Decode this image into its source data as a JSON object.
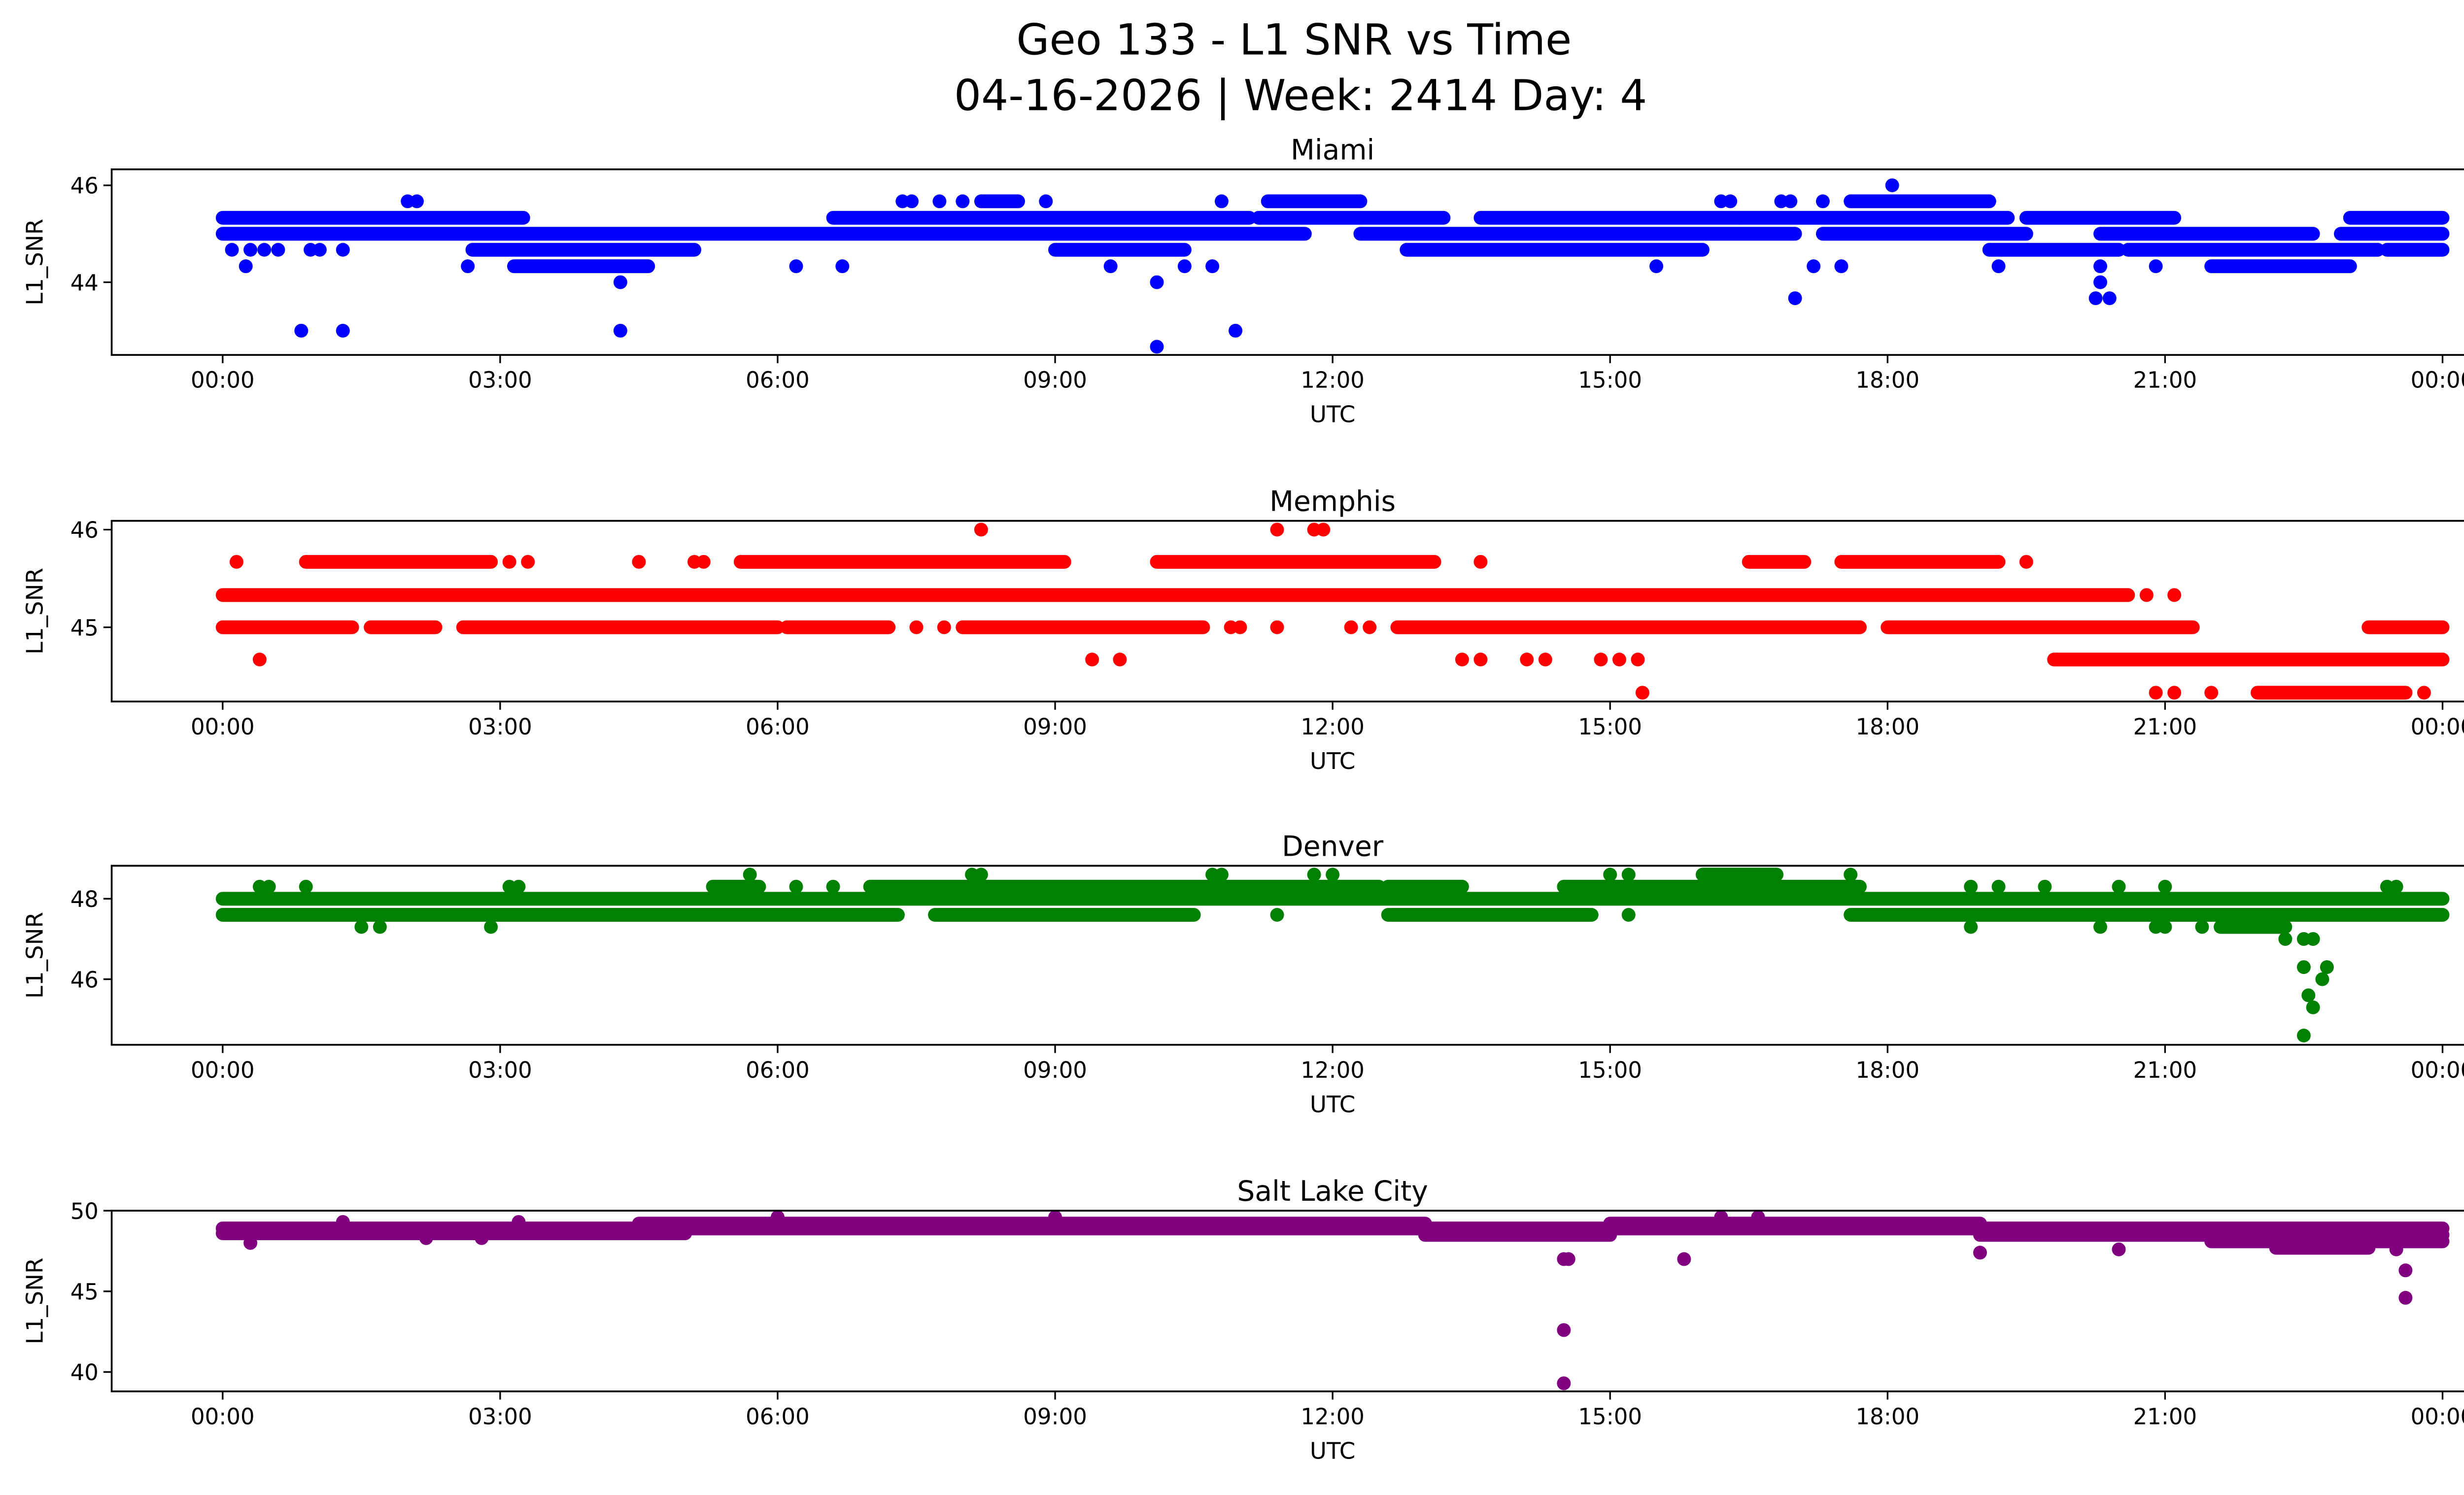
{
  "title_line1": "Geo 133 - L1 SNR vs Time",
  "title_line2": "04-16-2026 | Week: 2414 Day: 4",
  "chart_data": [
    {
      "type": "scatter",
      "title": "Miami",
      "color": "#0000ff",
      "xlabel": "UTC",
      "ylabel": "L1_SNR",
      "x_unit": "hours UTC",
      "xlim": [
        -1.2,
        25.2
      ],
      "ylim": [
        42.5,
        46.33
      ],
      "xticks": [
        0,
        3,
        6,
        9,
        12,
        15,
        18,
        21,
        24
      ],
      "xtick_labels": [
        "00:00",
        "03:00",
        "06:00",
        "09:00",
        "12:00",
        "15:00",
        "18:00",
        "21:00",
        "00:00"
      ],
      "yticks": [
        44,
        46
      ],
      "ytick_labels": [
        "44",
        "46"
      ],
      "bands": [
        [
          0,
          3.25,
          45.33
        ],
        [
          6.6,
          11.1,
          45.33
        ],
        [
          11.2,
          12.3,
          45.33
        ],
        [
          12.3,
          13.2,
          45.33
        ],
        [
          13.6,
          16.4,
          45.33
        ],
        [
          16.4,
          19.3,
          45.33
        ],
        [
          19.5,
          21.1,
          45.33
        ],
        [
          23.0,
          24,
          45.33
        ],
        [
          0,
          11.7,
          45.0
        ],
        [
          12.3,
          17.0,
          45.0
        ],
        [
          17.3,
          19.5,
          45.0
        ],
        [
          20.3,
          22.6,
          45.0
        ],
        [
          22.9,
          24,
          45.0
        ],
        [
          2.7,
          5.1,
          44.67
        ],
        [
          9.0,
          10.4,
          44.67
        ],
        [
          12.8,
          16.0,
          44.67
        ],
        [
          19.1,
          20.5,
          44.67
        ],
        [
          20.6,
          23.3,
          44.67
        ],
        [
          23.4,
          24,
          44.67
        ],
        [
          3.15,
          4.6,
          44.33
        ],
        [
          21.5,
          23.0,
          44.33
        ],
        [
          11.3,
          12.3,
          45.67
        ],
        [
          17.6,
          19.1,
          45.67
        ],
        [
          8.2,
          8.6,
          45.67
        ]
      ],
      "points": [
        [
          0.1,
          44.67
        ],
        [
          0.3,
          44.67
        ],
        [
          0.45,
          44.67
        ],
        [
          0.6,
          44.67
        ],
        [
          0.95,
          44.67
        ],
        [
          1.05,
          44.67
        ],
        [
          1.3,
          44.67
        ],
        [
          0.25,
          44.33
        ],
        [
          0.85,
          43.0
        ],
        [
          1.3,
          43.0
        ],
        [
          4.3,
          43.0
        ],
        [
          10.95,
          43.0
        ],
        [
          10.1,
          42.67
        ],
        [
          4.3,
          44.0
        ],
        [
          10.1,
          44.0
        ],
        [
          20.3,
          44.0
        ],
        [
          17.0,
          43.67
        ],
        [
          20.25,
          43.67
        ],
        [
          20.4,
          43.67
        ],
        [
          2.65,
          44.33
        ],
        [
          6.2,
          44.33
        ],
        [
          6.7,
          44.33
        ],
        [
          9.6,
          44.33
        ],
        [
          10.4,
          44.33
        ],
        [
          10.7,
          44.33
        ],
        [
          15.5,
          44.33
        ],
        [
          17.2,
          44.33
        ],
        [
          17.5,
          44.33
        ],
        [
          19.2,
          44.33
        ],
        [
          20.3,
          44.33
        ],
        [
          20.9,
          44.33
        ],
        [
          2.0,
          45.67
        ],
        [
          2.1,
          45.67
        ],
        [
          7.35,
          45.67
        ],
        [
          7.45,
          45.67
        ],
        [
          7.75,
          45.67
        ],
        [
          8.0,
          45.67
        ],
        [
          8.9,
          45.67
        ],
        [
          10.8,
          45.67
        ],
        [
          16.2,
          45.67
        ],
        [
          16.3,
          45.67
        ],
        [
          16.85,
          45.67
        ],
        [
          16.95,
          45.67
        ],
        [
          17.3,
          45.67
        ],
        [
          18.05,
          46.0
        ]
      ]
    },
    {
      "type": "scatter",
      "title": "Memphis",
      "color": "#ff0000",
      "xlabel": "UTC",
      "ylabel": "L1_SNR",
      "x_unit": "hours UTC",
      "xlim": [
        -1.2,
        25.2
      ],
      "ylim": [
        44.24,
        46.09
      ],
      "xticks": [
        0,
        3,
        6,
        9,
        12,
        15,
        18,
        21,
        24
      ],
      "xtick_labels": [
        "00:00",
        "03:00",
        "06:00",
        "09:00",
        "12:00",
        "15:00",
        "18:00",
        "21:00",
        "00:00"
      ],
      "yticks": [
        45,
        46
      ],
      "ytick_labels": [
        "45",
        "46"
      ],
      "bands": [
        [
          0,
          20.6,
          45.33
        ],
        [
          0,
          1.4,
          45.0
        ],
        [
          1.6,
          2.3,
          45.0
        ],
        [
          2.6,
          6.0,
          45.0
        ],
        [
          6.1,
          7.2,
          45.0
        ],
        [
          8.0,
          10.6,
          45.0
        ],
        [
          12.7,
          17.7,
          45.0
        ],
        [
          18.0,
          19.8,
          45.0
        ],
        [
          19.8,
          21.3,
          45.0
        ],
        [
          23.2,
          24,
          45.0
        ],
        [
          0.9,
          2.9,
          45.67
        ],
        [
          5.6,
          9.1,
          45.67
        ],
        [
          10.1,
          13.1,
          45.67
        ],
        [
          16.5,
          17.1,
          45.67
        ],
        [
          17.5,
          19.2,
          45.67
        ],
        [
          19.8,
          24,
          44.67
        ],
        [
          22.0,
          23.6,
          44.33
        ]
      ],
      "points": [
        [
          0.15,
          45.67
        ],
        [
          3.1,
          45.67
        ],
        [
          3.3,
          45.67
        ],
        [
          4.5,
          45.67
        ],
        [
          5.1,
          45.67
        ],
        [
          5.2,
          45.67
        ],
        [
          13.6,
          45.67
        ],
        [
          19.5,
          45.67
        ],
        [
          7.5,
          45.0
        ],
        [
          7.8,
          45.0
        ],
        [
          11.4,
          45.0
        ],
        [
          12.2,
          45.0
        ],
        [
          12.4,
          45.0
        ],
        [
          10.9,
          45.0
        ],
        [
          11.0,
          45.0
        ],
        [
          20.8,
          45.33
        ],
        [
          21.1,
          45.33
        ],
        [
          8.2,
          46.0
        ],
        [
          11.4,
          46.0
        ],
        [
          11.8,
          46.0
        ],
        [
          11.9,
          46.0
        ],
        [
          0.4,
          44.67
        ],
        [
          9.4,
          44.67
        ],
        [
          9.7,
          44.67
        ],
        [
          13.4,
          44.67
        ],
        [
          13.6,
          44.67
        ],
        [
          14.1,
          44.67
        ],
        [
          14.3,
          44.67
        ],
        [
          14.9,
          44.67
        ],
        [
          15.1,
          44.67
        ],
        [
          15.3,
          44.67
        ],
        [
          15.35,
          44.33
        ],
        [
          20.9,
          44.33
        ],
        [
          21.1,
          44.33
        ],
        [
          21.5,
          44.33
        ],
        [
          23.8,
          44.33
        ]
      ]
    },
    {
      "type": "scatter",
      "title": "Denver",
      "color": "#008000",
      "xlabel": "UTC",
      "ylabel": "L1_SNR",
      "x_unit": "hours UTC",
      "xlim": [
        -1.2,
        25.2
      ],
      "ylim": [
        44.37,
        48.82
      ],
      "xticks": [
        0,
        3,
        6,
        9,
        12,
        15,
        18,
        21,
        24
      ],
      "xtick_labels": [
        "00:00",
        "03:00",
        "06:00",
        "09:00",
        "12:00",
        "15:00",
        "18:00",
        "21:00",
        "00:00"
      ],
      "yticks": [
        46,
        48
      ],
      "ytick_labels": [
        "46",
        "48"
      ],
      "bands": [
        [
          0,
          7.3,
          47.6
        ],
        [
          7.7,
          10.5,
          47.6
        ],
        [
          12.6,
          14.8,
          47.6
        ],
        [
          17.6,
          24,
          47.6
        ],
        [
          0,
          24,
          48.0
        ],
        [
          7.0,
          12.5,
          48.3
        ],
        [
          14.5,
          17.7,
          48.3
        ],
        [
          5.3,
          5.8,
          48.3
        ],
        [
          12.6,
          13.4,
          48.3
        ],
        [
          16.0,
          16.8,
          48.6
        ],
        [
          21.6,
          22.3,
          47.3
        ]
      ],
      "points": [
        [
          0.4,
          48.3
        ],
        [
          0.5,
          48.3
        ],
        [
          0.9,
          48.3
        ],
        [
          3.1,
          48.3
        ],
        [
          3.2,
          48.3
        ],
        [
          6.2,
          48.3
        ],
        [
          6.6,
          48.3
        ],
        [
          18.9,
          48.3
        ],
        [
          19.2,
          48.3
        ],
        [
          19.7,
          48.3
        ],
        [
          20.5,
          48.3
        ],
        [
          21.0,
          48.3
        ],
        [
          23.4,
          48.3
        ],
        [
          23.5,
          48.3
        ],
        [
          5.7,
          48.6
        ],
        [
          8.1,
          48.6
        ],
        [
          8.2,
          48.6
        ],
        [
          10.7,
          48.6
        ],
        [
          10.8,
          48.6
        ],
        [
          11.8,
          48.6
        ],
        [
          12.0,
          48.6
        ],
        [
          15.0,
          48.6
        ],
        [
          15.2,
          48.6
        ],
        [
          17.6,
          48.6
        ],
        [
          1.5,
          47.3
        ],
        [
          1.7,
          47.3
        ],
        [
          2.9,
          47.3
        ],
        [
          18.9,
          47.3
        ],
        [
          20.3,
          47.3
        ],
        [
          20.9,
          47.3
        ],
        [
          21.0,
          47.3
        ],
        [
          21.4,
          47.3
        ],
        [
          22.3,
          47.0
        ],
        [
          22.5,
          47.0
        ],
        [
          22.6,
          47.0
        ],
        [
          22.5,
          46.3
        ],
        [
          22.55,
          45.6
        ],
        [
          22.6,
          45.3
        ],
        [
          22.5,
          44.6
        ],
        [
          22.7,
          46.0
        ],
        [
          22.75,
          46.3
        ],
        [
          11.4,
          47.6
        ],
        [
          15.2,
          47.6
        ],
        [
          12.9,
          47.6
        ]
      ]
    },
    {
      "type": "scatter",
      "title": "Salt Lake City",
      "color": "#800080",
      "xlabel": "UTC",
      "ylabel": "L1_SNR",
      "x_unit": "hours UTC",
      "xlim": [
        -1.2,
        25.2
      ],
      "ylim": [
        38.8,
        50.0
      ],
      "xticks": [
        0,
        3,
        6,
        9,
        12,
        15,
        18,
        21,
        24
      ],
      "xtick_labels": [
        "00:00",
        "03:00",
        "06:00",
        "09:00",
        "12:00",
        "15:00",
        "18:00",
        "21:00",
        "00:00"
      ],
      "yticks": [
        40,
        45,
        50
      ],
      "ytick_labels": [
        "40",
        "45",
        "50"
      ],
      "bands": [
        [
          0,
          24,
          48.9
        ],
        [
          0,
          5.0,
          48.6
        ],
        [
          4.5,
          13.0,
          49.2
        ],
        [
          13.0,
          15.0,
          48.5
        ],
        [
          15.0,
          19.0,
          49.2
        ],
        [
          19.0,
          24,
          48.5
        ],
        [
          21.5,
          24,
          48.1
        ],
        [
          22.2,
          23.2,
          47.7
        ]
      ],
      "points": [
        [
          0.3,
          48.0
        ],
        [
          2.2,
          48.3
        ],
        [
          2.8,
          48.3
        ],
        [
          1.3,
          49.3
        ],
        [
          3.2,
          49.3
        ],
        [
          14.5,
          47.0
        ],
        [
          14.55,
          47.0
        ],
        [
          14.5,
          42.6
        ],
        [
          14.5,
          39.3
        ],
        [
          15.8,
          47.0
        ],
        [
          19.0,
          47.4
        ],
        [
          20.5,
          47.6
        ],
        [
          23.6,
          46.3
        ],
        [
          23.6,
          44.6
        ],
        [
          23.5,
          47.6
        ],
        [
          6.0,
          49.6
        ],
        [
          9.0,
          49.6
        ],
        [
          16.2,
          49.6
        ],
        [
          16.6,
          49.6
        ]
      ]
    }
  ]
}
